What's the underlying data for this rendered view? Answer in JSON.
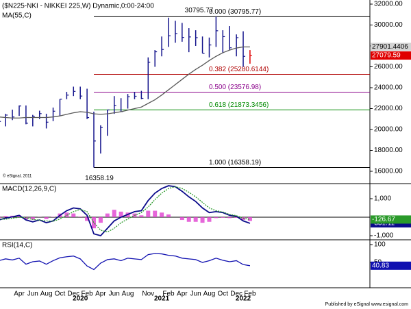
{
  "chart_data": [
    {
      "type": "ohlc",
      "title": "($N225-NKI - NIKKEI 225,W) Dynamic,0:00-24:00",
      "categories": [
        null,
        null,
        null,
        "Apr",
        null,
        "Jun",
        null,
        "Aug",
        null,
        "Oct",
        null,
        "Dec",
        null,
        "Feb",
        null,
        "Apr",
        null,
        "Jun",
        null,
        "Aug",
        null,
        null,
        "Nov",
        null,
        null,
        "Feb",
        null,
        "Apr",
        null,
        "Jun",
        null,
        "Aug",
        null,
        "Oct",
        null,
        "Dec",
        null,
        "Feb"
      ],
      "years": [
        null,
        null,
        null,
        null,
        null,
        null,
        null,
        null,
        null,
        null,
        null,
        null,
        "2020",
        null,
        null,
        null,
        null,
        null,
        null,
        null,
        null,
        null,
        null,
        null,
        "2021",
        null,
        null,
        null,
        null,
        null,
        null,
        null,
        null,
        null,
        null,
        null,
        "2022",
        null
      ],
      "high": [
        20900,
        21500,
        21900,
        22300,
        22300,
        21400,
        21800,
        21500,
        22100,
        22900,
        23600,
        24100,
        24100,
        23900,
        21700,
        20400,
        21900,
        23200,
        23000,
        23400,
        23600,
        23700,
        26900,
        27600,
        28900,
        30700,
        30400,
        30200,
        29700,
        29500,
        28900,
        28800,
        30795.77,
        29500,
        29900,
        29100,
        29400,
        27600
      ],
      "low": [
        19500,
        20300,
        20900,
        21300,
        20500,
        20300,
        21000,
        20100,
        20800,
        21300,
        22900,
        23200,
        22900,
        21000,
        16358.19,
        17700,
        19400,
        21500,
        21700,
        22000,
        22900,
        22900,
        22900,
        26000,
        27000,
        27900,
        28300,
        28400,
        27400,
        28000,
        27300,
        26900,
        27900,
        27300,
        27600,
        27000,
        26000,
        26300
      ],
      "close": [
        20770,
        21380,
        21200,
        22250,
        20600,
        21270,
        21520,
        20700,
        21750,
        22900,
        23290,
        23650,
        23200,
        21140,
        18900,
        20190,
        21870,
        22290,
        21710,
        23140,
        23180,
        22980,
        26430,
        27440,
        27660,
        28970,
        29180,
        28810,
        28860,
        28790,
        27280,
        28090,
        29450,
        28890,
        27820,
        28790,
        27000,
        27079.59
      ],
      "color": "#14148c",
      "last_color": "#e00000",
      "ylim": [
        14820,
        32262
      ],
      "yticks": [
        {
          "value": 16000,
          "label": "16000.00"
        },
        {
          "value": 18000,
          "label": "18000.00"
        },
        {
          "value": 20000,
          "label": "20000.00"
        },
        {
          "value": 22000,
          "label": "22000.00"
        },
        {
          "value": 24000,
          "label": "24000.00"
        },
        {
          "value": 26000,
          "label": "26000.00"
        },
        {
          "value": 28000,
          "label": "28000.00"
        },
        {
          "value": 30000,
          "label": "30000.00"
        },
        {
          "value": 32000,
          "label": "32000.00"
        }
      ],
      "ma": {
        "name": "MA(55,C)",
        "color": "#5a5a5a",
        "values": [
          21200,
          21150,
          21100,
          21100,
          21150,
          21150,
          21150,
          21150,
          21200,
          21300,
          21450,
          21600,
          21700,
          21650,
          21500,
          21450,
          21500,
          21600,
          21700,
          21850,
          22000,
          22150,
          22500,
          22850,
          23300,
          23800,
          24300,
          24800,
          25300,
          25750,
          26150,
          26600,
          27000,
          27350,
          27600,
          27800,
          27900,
          27901.4406
        ]
      },
      "fib_levels": [
        {
          "label": "0.000 (30795.77)",
          "value": 30795.77,
          "color": "#000000"
        },
        {
          "label": "0.382 (25280.6144)",
          "value": 25280.6144,
          "color": "#b00000"
        },
        {
          "label": "0.500 (23576.98)",
          "value": 23576.98,
          "color": "#8a008a"
        },
        {
          "label": "0.618 (21873.3456)",
          "value": 21873.3456,
          "color": "#008a00"
        },
        {
          "label": "1.000 (16358.19)",
          "value": 16358.19,
          "color": "#000000"
        }
      ],
      "peak_label": 30795.77,
      "trough_label": 16358.19,
      "copyright": "© eSignal, 2011"
    },
    {
      "type": "macd",
      "title": "MACD(12,26,9,C)",
      "ylim": [
        -1222,
        1815
      ],
      "yticks": [
        {
          "value": 1000,
          "label": "1,000"
        },
        {
          "value": -1000,
          "label": "-1,000"
        }
      ],
      "series": [
        {
          "color": "#0a0a8a",
          "values": [
            -150,
            -50,
            20,
            100,
            -150,
            -250,
            -150,
            -300,
            -200,
            100,
            350,
            500,
            450,
            100,
            -900,
            -1000,
            -600,
            -200,
            0,
            150,
            300,
            350,
            900,
            1300,
            1550,
            1700,
            1650,
            1400,
            1100,
            850,
            500,
            250,
            300,
            250,
            100,
            50,
            -200,
            -331.11
          ]
        },
        {
          "color": "#2a9a2a",
          "values": [
            -100,
            -110,
            -60,
            0,
            -30,
            -120,
            -160,
            -200,
            -220,
            -100,
            100,
            300,
            420,
            300,
            -300,
            -700,
            -800,
            -600,
            -300,
            -100,
            100,
            250,
            550,
            950,
            1300,
            1550,
            1650,
            1550,
            1350,
            1100,
            800,
            500,
            350,
            280,
            150,
            80,
            -50,
            -126.67
          ]
        }
      ],
      "histogram": {
        "color": "#e040d0",
        "values": [
          -50,
          60,
          80,
          100,
          -120,
          -130,
          10,
          -100,
          20,
          200,
          250,
          200,
          30,
          -200,
          -600,
          -300,
          200,
          400,
          300,
          250,
          200,
          100,
          350,
          350,
          250,
          150,
          0,
          -150,
          -250,
          -250,
          -300,
          -250,
          -50,
          -30,
          -50,
          -30,
          -150,
          -204.44
        ]
      }
    },
    {
      "type": "rsi",
      "title": "RSI(14,C)",
      "ylim": [
        -21,
        113.5
      ],
      "yticks": [
        100,
        50
      ],
      "color": "#1010b0",
      "values": [
        55,
        60,
        57,
        62,
        45,
        52,
        54,
        45,
        55,
        63,
        66,
        68,
        60,
        40,
        30,
        48,
        58,
        60,
        55,
        62,
        60,
        58,
        72,
        75,
        74,
        70,
        68,
        62,
        60,
        58,
        50,
        55,
        62,
        56,
        52,
        55,
        44,
        40.83
      ]
    }
  ],
  "footer": "Published by eSignal www.esignal.com"
}
